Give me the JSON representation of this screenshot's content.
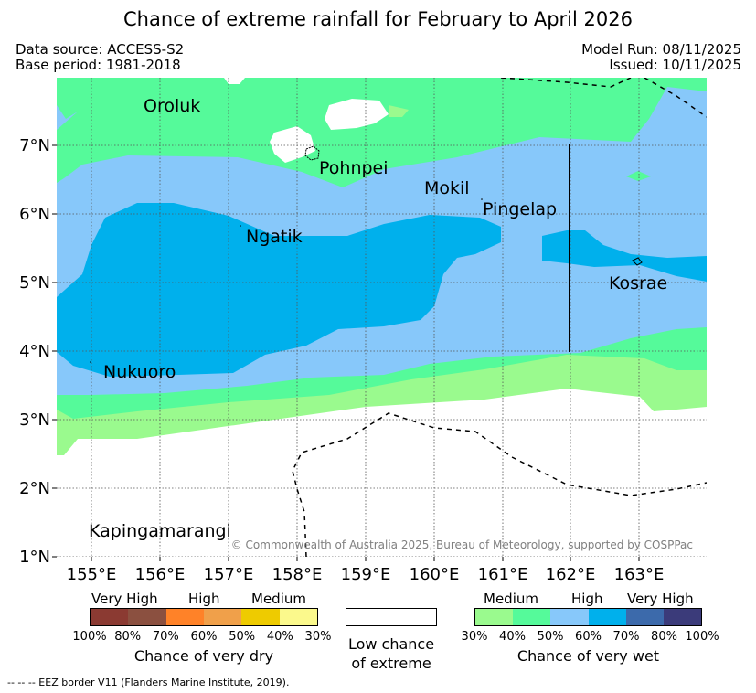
{
  "title": "Chance of extreme rainfall for February to April 2026",
  "header": {
    "data_source": "Data source: ACCESS-S2",
    "base_period": "Base period: 1981-2018",
    "model_run": "Model Run: 08/11/2025",
    "issued": "Issued: 10/11/2025"
  },
  "map": {
    "lon_ticks": [
      "155°E",
      "156°E",
      "157°E",
      "158°E",
      "159°E",
      "160°E",
      "161°E",
      "162°E",
      "163°E"
    ],
    "lat_ticks": [
      "1°N",
      "2°N",
      "3°N",
      "4°N",
      "5°N",
      "6°N",
      "7°N"
    ],
    "place_labels": {
      "oroluk": "Oroluk",
      "pohnpei": "Pohnpei",
      "mokil": "Mokil",
      "pingelap": "Pingelap",
      "ngatik": "Ngatik",
      "kosrae": "Kosrae",
      "nukuoro": "Nukuoro",
      "kapingamarangi": "Kapingamarangi"
    },
    "copyright": "© Commonwealth of Australia 2025, Bureau of Meteorology, supported by COSPPac",
    "colors": {
      "wet_medium_30": "#9afa8e",
      "wet_medium_40": "#55fa9a",
      "wet_high_50": "#87c8fa",
      "wet_high_60": "#00b0ec",
      "wet_very_high_70": "#3c6aab",
      "wet_very_high_80": "#3b3b7a"
    }
  },
  "legend": {
    "dry": {
      "groups": [
        "Very High",
        "High",
        "Medium"
      ],
      "ticks": [
        "100%",
        "80%",
        "70%",
        "60%",
        "50%",
        "40%",
        "30%"
      ],
      "title": "Chance of very dry",
      "colors": [
        "#8b3a32",
        "#8b5040",
        "#ff8228",
        "#f0a04a",
        "#eecb00",
        "#fbf98c"
      ]
    },
    "low": {
      "line1": "Low chance",
      "line2": "of extreme"
    },
    "wet": {
      "groups": [
        "Medium",
        "High",
        "Very High"
      ],
      "ticks": [
        "30%",
        "40%",
        "50%",
        "60%",
        "70%",
        "80%",
        "100%"
      ],
      "title": "Chance of very wet",
      "colors": [
        "#9afa8e",
        "#55fa9a",
        "#87c8fa",
        "#00b0ec",
        "#3c6aab",
        "#3b3b7a"
      ]
    }
  },
  "footnote": "--  --  -- EEZ border V11 (Flanders Marine Institute, 2019)."
}
